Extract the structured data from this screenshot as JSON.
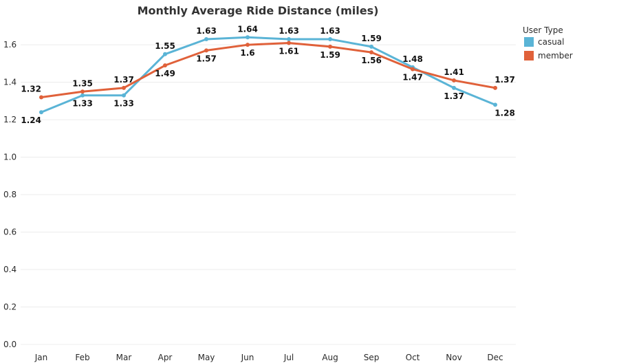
{
  "chart_data": {
    "type": "line",
    "title": "Monthly Average Ride Distance (miles)",
    "xlabel": "",
    "ylabel": "",
    "categories": [
      "Jan",
      "Feb",
      "Mar",
      "Apr",
      "May",
      "Jun",
      "Jul",
      "Aug",
      "Sep",
      "Oct",
      "Nov",
      "Dec"
    ],
    "ylim": [
      0,
      1.72
    ],
    "yticks": [
      "0.0",
      "0.2",
      "0.4",
      "0.6",
      "0.8",
      "1.0",
      "1.2",
      "1.4",
      "1.6"
    ],
    "grid": true,
    "legend": {
      "title": "User Type",
      "placement": "top-right"
    },
    "series": [
      {
        "name": "casual",
        "color": "#5ab4d6",
        "values": [
          1.24,
          1.33,
          1.33,
          1.55,
          1.63,
          1.64,
          1.63,
          1.63,
          1.59,
          1.48,
          1.37,
          1.28
        ],
        "labels": [
          "1.24",
          "1.33",
          "1.33",
          "1.55",
          "1.63",
          "1.64",
          "1.63",
          "1.63",
          "1.59",
          "1.48",
          "1.37",
          "1.28"
        ]
      },
      {
        "name": "member",
        "color": "#e0613a",
        "values": [
          1.32,
          1.35,
          1.37,
          1.49,
          1.57,
          1.6,
          1.61,
          1.59,
          1.56,
          1.47,
          1.41,
          1.37
        ],
        "labels": [
          "1.32",
          "1.35",
          "1.37",
          "1.49",
          "1.57",
          "1.6",
          "1.61",
          "1.59",
          "1.56",
          "1.47",
          "1.41",
          "1.37"
        ]
      }
    ]
  }
}
